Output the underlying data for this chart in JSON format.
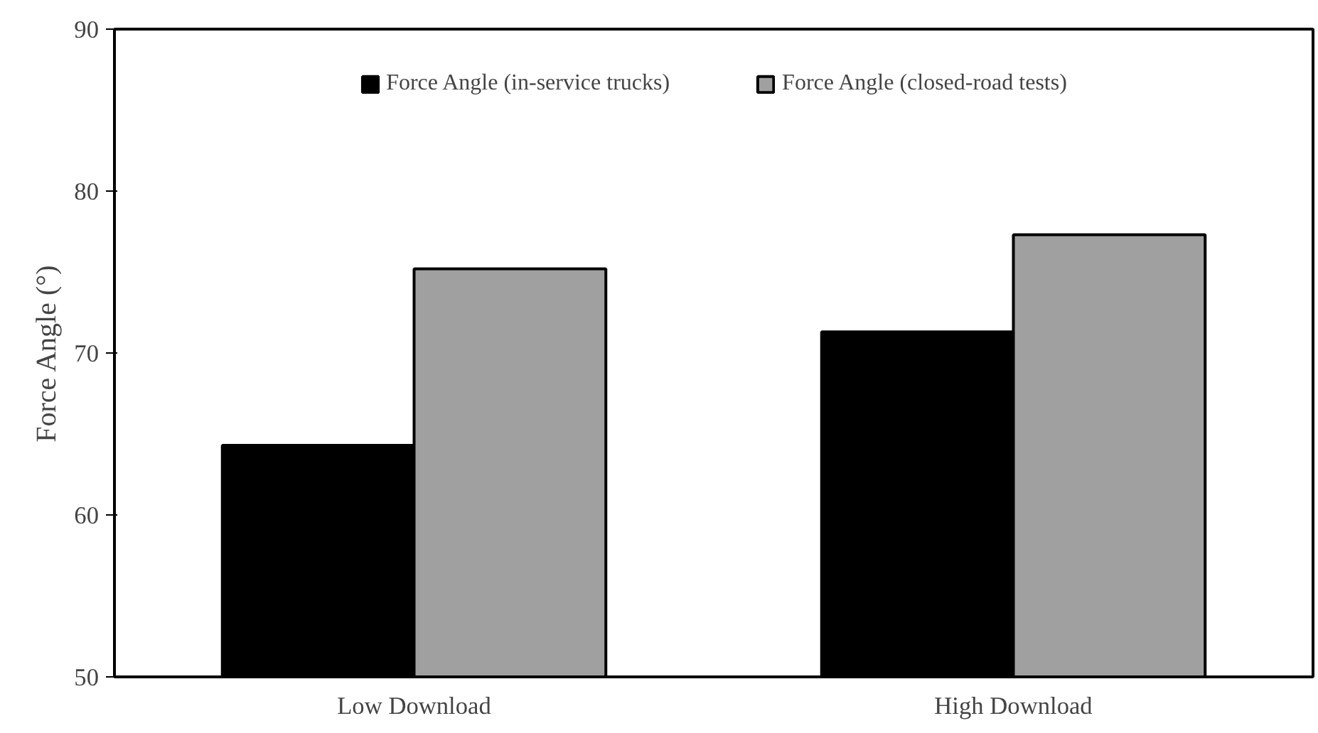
{
  "chart_data": {
    "type": "bar",
    "ylabel": "Force Angle (°)",
    "categories": [
      "Low Download",
      "High Download"
    ],
    "series": [
      {
        "name": "Force Angle (in-service trucks)",
        "color": "#000000",
        "values": [
          64.3,
          71.3
        ]
      },
      {
        "name": "Force Angle (closed-road tests)",
        "color": "#a0a0a0",
        "values": [
          75.2,
          77.3
        ]
      }
    ],
    "ylim": [
      50,
      90
    ],
    "yticks": [
      50,
      60,
      70,
      80,
      90
    ],
    "grid": false,
    "legend": "top"
  }
}
